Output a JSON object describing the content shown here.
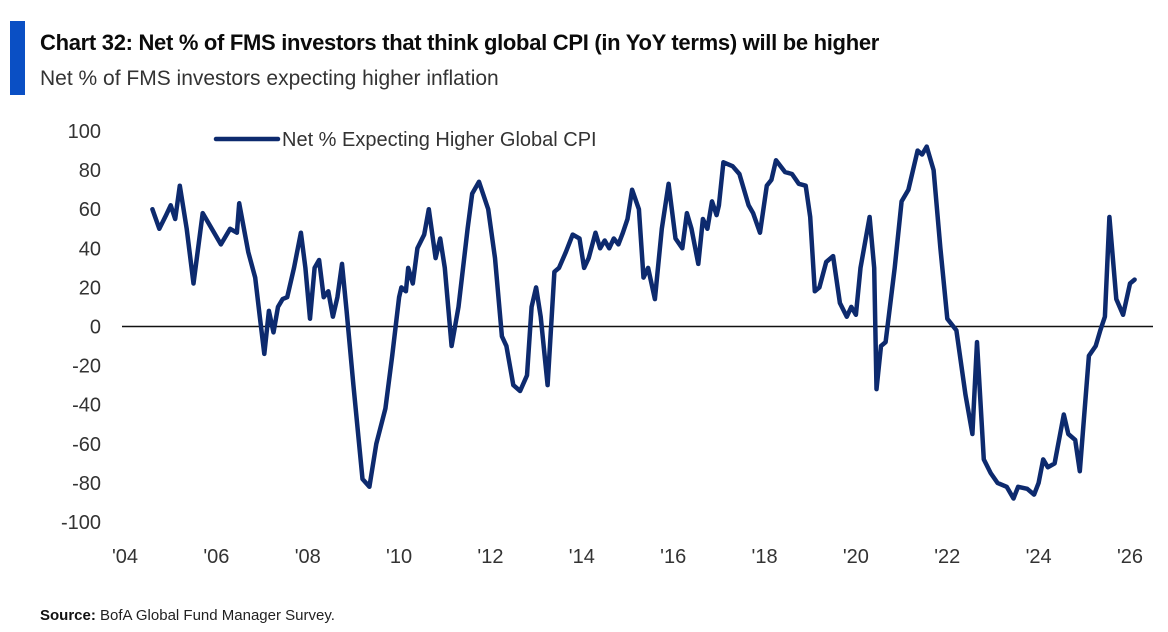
{
  "header": {
    "title": "Chart 32: Net % of FMS investors that think global CPI (in YoY terms) will be higher",
    "subtitle": "Net % of FMS investors expecting higher inflation"
  },
  "footer": {
    "source_label": "Source:",
    "source_text": " BofA Global Fund Manager Survey."
  },
  "colors": {
    "accent": "#0a4fc4",
    "series": "#0d2a6e",
    "zero_line": "#111111"
  },
  "chart_data": {
    "type": "line",
    "title": "Chart 32: Net % of FMS investors that think global CPI (in YoY terms) will be higher",
    "subtitle": "Net % of FMS investors expecting higher inflation",
    "xlabel": "",
    "ylabel": "",
    "xlim": [
      2004,
      2026
    ],
    "ylim": [
      -100,
      100
    ],
    "x_ticks": [
      2004,
      2006,
      2008,
      2010,
      2012,
      2014,
      2016,
      2018,
      2020,
      2022,
      2024,
      2026
    ],
    "x_tick_labels": [
      "'04",
      "'06",
      "'08",
      "'10",
      "'12",
      "'14",
      "'16",
      "'18",
      "'20",
      "'22",
      "'24",
      "'26"
    ],
    "y_ticks": [
      100,
      80,
      60,
      40,
      20,
      0,
      -20,
      -40,
      -60,
      -80,
      -100
    ],
    "y_tick_labels": [
      "100",
      "80",
      "60",
      "40",
      "20",
      "0",
      "-20",
      "-40",
      "-60",
      "-80",
      "-100"
    ],
    "grid": false,
    "zero_line": true,
    "legend": {
      "position": "top-left",
      "entries": [
        "Net % Expecting Higher Global CPI"
      ]
    },
    "series": [
      {
        "name": "Net % Expecting Higher Global CPI",
        "x": [
          2004.6,
          2004.75,
          2004.9,
          2005.0,
          2005.1,
          2005.2,
          2005.35,
          2005.5,
          2005.7,
          2005.9,
          2006.1,
          2006.3,
          2006.45,
          2006.5,
          2006.7,
          2006.85,
          2006.95,
          2007.05,
          2007.15,
          2007.25,
          2007.35,
          2007.45,
          2007.55,
          2007.7,
          2007.85,
          2007.95,
          2008.05,
          2008.15,
          2008.25,
          2008.35,
          2008.45,
          2008.55,
          2008.65,
          2008.75,
          2008.85,
          2009.0,
          2009.2,
          2009.35,
          2009.5,
          2009.7,
          2009.85,
          2010.0,
          2010.05,
          2010.15,
          2010.2,
          2010.3,
          2010.4,
          2010.55,
          2010.65,
          2010.8,
          2010.9,
          2011.0,
          2011.15,
          2011.3,
          2011.5,
          2011.6,
          2011.75,
          2011.95,
          2012.1,
          2012.25,
          2012.35,
          2012.5,
          2012.65,
          2012.8,
          2012.9,
          2013.0,
          2013.1,
          2013.25,
          2013.4,
          2013.5,
          2013.65,
          2013.8,
          2013.95,
          2014.05,
          2014.15,
          2014.3,
          2014.4,
          2014.5,
          2014.6,
          2014.7,
          2014.8,
          2014.9,
          2015.0,
          2015.1,
          2015.25,
          2015.35,
          2015.45,
          2015.6,
          2015.75,
          2015.9,
          2016.05,
          2016.2,
          2016.3,
          2016.4,
          2016.55,
          2016.65,
          2016.75,
          2016.85,
          2016.95,
          2017.0,
          2017.1,
          2017.3,
          2017.45,
          2017.65,
          2017.75,
          2017.9,
          2018.05,
          2018.15,
          2018.25,
          2018.45,
          2018.6,
          2018.75,
          2018.9,
          2019.0,
          2019.1,
          2019.2,
          2019.35,
          2019.5,
          2019.65,
          2019.8,
          2019.9,
          2020.0,
          2020.1,
          2020.3,
          2020.4,
          2020.45,
          2020.55,
          2020.65,
          2020.85,
          2021.0,
          2021.15,
          2021.25,
          2021.35,
          2021.45,
          2021.55,
          2021.7,
          2021.85,
          2022.0,
          2022.2,
          2022.4,
          2022.55,
          2022.65,
          2022.8,
          2022.95,
          2023.1,
          2023.3,
          2023.45,
          2023.55,
          2023.75,
          2023.9,
          2024.0,
          2024.1,
          2024.2,
          2024.35,
          2024.55,
          2024.65,
          2024.8,
          2024.9,
          2025.1,
          2025.25,
          2025.35,
          2025.45,
          2025.55,
          2025.7,
          2025.85,
          2026.0,
          2026.1
        ],
        "values": [
          60,
          50,
          57,
          62,
          55,
          72,
          50,
          22,
          58,
          50,
          42,
          50,
          48,
          63,
          38,
          25,
          5,
          -14,
          8,
          -3,
          10,
          14,
          15,
          30,
          48,
          30,
          4,
          30,
          34,
          15,
          18,
          5,
          15,
          32,
          8,
          -30,
          -78,
          -82,
          -60,
          -42,
          -15,
          15,
          20,
          18,
          30,
          22,
          40,
          47,
          60,
          35,
          45,
          30,
          -10,
          10,
          50,
          68,
          74,
          60,
          35,
          -5,
          -10,
          -30,
          -33,
          -25,
          10,
          20,
          5,
          -30,
          28,
          30,
          38,
          47,
          45,
          30,
          35,
          48,
          40,
          44,
          40,
          45,
          42,
          48,
          55,
          70,
          60,
          25,
          30,
          14,
          50,
          73,
          45,
          40,
          58,
          50,
          32,
          55,
          50,
          64,
          57,
          62,
          84,
          82,
          78,
          62,
          58,
          48,
          72,
          75,
          85,
          79,
          78,
          73,
          72,
          56,
          18,
          20,
          33,
          36,
          12,
          5,
          10,
          6,
          30,
          56,
          30,
          -32,
          -10,
          -8,
          30,
          64,
          70,
          80,
          90,
          88,
          92,
          80,
          40,
          4,
          -2,
          -35,
          -55,
          -8,
          -68,
          -75,
          -80,
          -82,
          -88,
          -82,
          -83,
          -86,
          -80,
          -68,
          -72,
          -70,
          -45,
          -55,
          -58,
          -74,
          -15,
          -10,
          -2,
          5,
          56,
          14,
          6,
          22,
          24
        ]
      }
    ]
  }
}
